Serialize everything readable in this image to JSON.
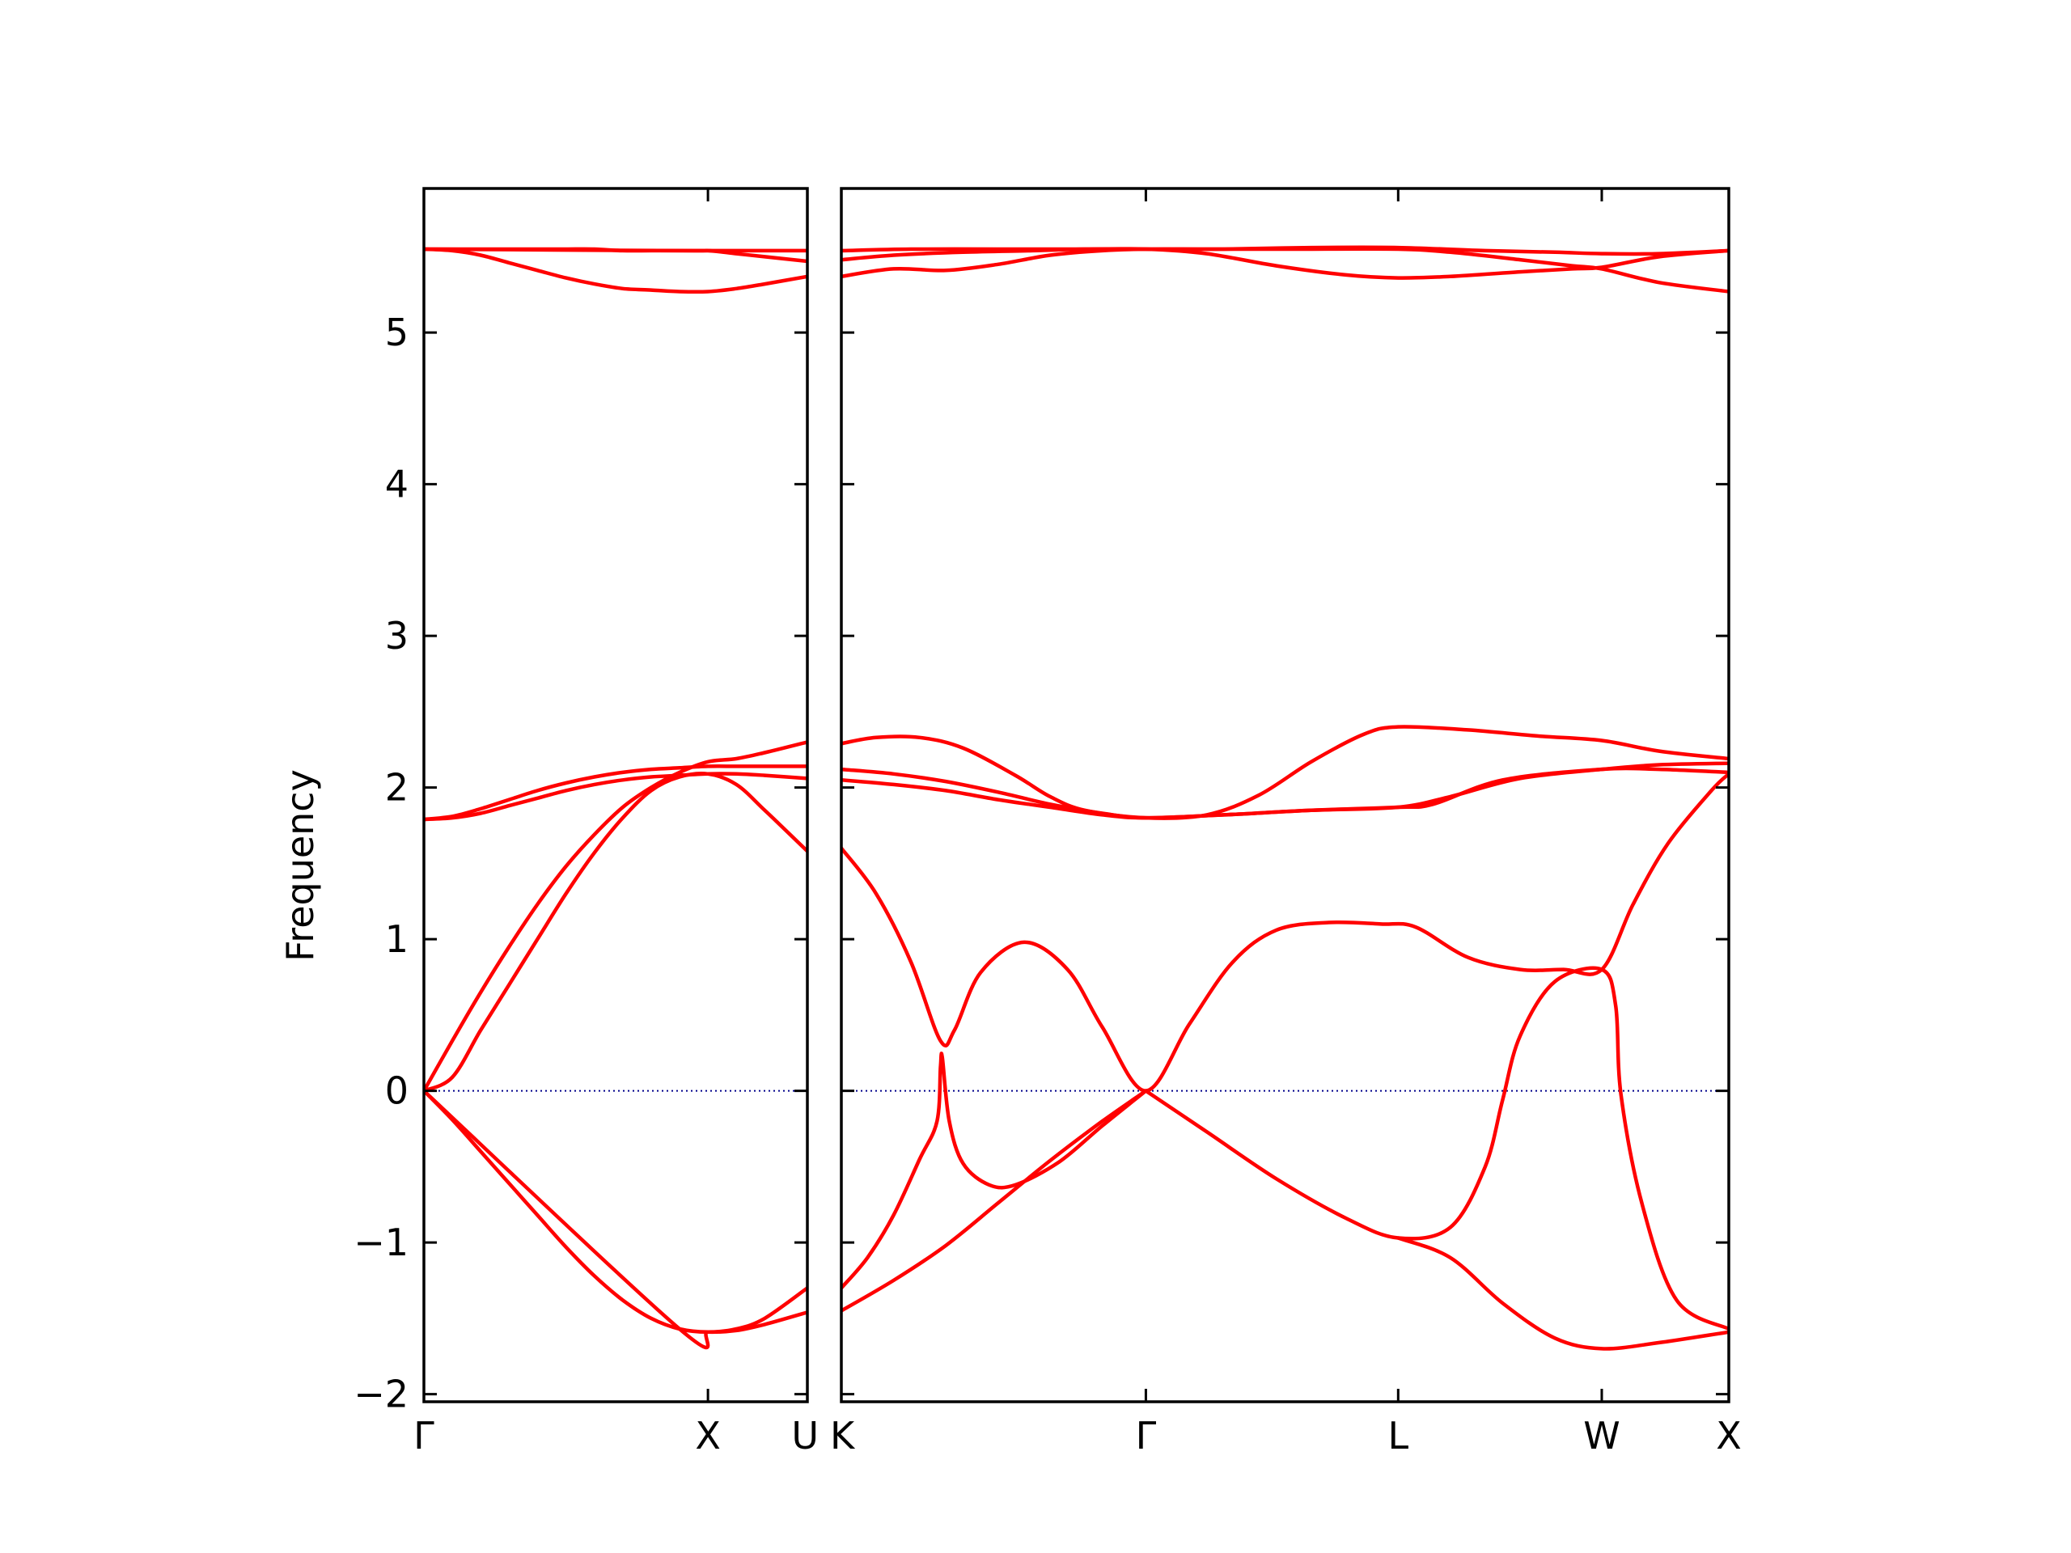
{
  "chart_data": {
    "type": "line",
    "ylabel": "Frequency",
    "xlabel": "",
    "ylim": [
      -2.05,
      5.95
    ],
    "yticks": [
      -2,
      -1,
      0,
      1,
      2,
      3,
      4,
      5
    ],
    "ytick_labels": [
      "−2",
      "−1",
      "0",
      "1",
      "2",
      "3",
      "4",
      "5"
    ],
    "colors": {
      "bands": "#ff0000",
      "zero_line": "#00008b",
      "frame": "#000000"
    },
    "zero_line": {
      "y": 0,
      "style": "dotted"
    },
    "panels": [
      {
        "path": [
          "Γ",
          "X",
          "U"
        ],
        "xrange": [
          0,
          1.35
        ],
        "xticks": [
          {
            "x": 0,
            "label": "Γ"
          },
          {
            "x": 1.0,
            "label": "X"
          },
          {
            "x": 1.35,
            "label": "U"
          }
        ],
        "series": [
          {
            "x": [
              0,
              0.1,
              0.2,
              0.3,
              0.4,
              0.5,
              0.6,
              0.7,
              0.8,
              0.9,
              1.0,
              1.1,
              1.2,
              1.35
            ],
            "y": [
              5.55,
              5.55,
              5.55,
              5.55,
              5.55,
              5.55,
              5.55,
              5.54,
              5.54,
              5.54,
              5.54,
              5.54,
              5.54,
              5.54
            ]
          },
          {
            "x": [
              0,
              0.1,
              0.2,
              0.3,
              0.4,
              0.5,
              0.6,
              0.7,
              0.8,
              0.9,
              1.0,
              1.1,
              1.2,
              1.35
            ],
            "y": [
              5.55,
              5.54,
              5.51,
              5.46,
              5.41,
              5.36,
              5.32,
              5.29,
              5.28,
              5.27,
              5.27,
              5.29,
              5.32,
              5.37
            ]
          },
          {
            "x": [
              0,
              0.9,
              1.0,
              1.1,
              1.2,
              1.35
            ],
            "y": [
              5.55,
              5.54,
              5.54,
              5.52,
              5.5,
              5.47
            ]
          },
          {
            "x": [
              0,
              0.1,
              0.2,
              0.3,
              0.4,
              0.5,
              0.6,
              0.7,
              0.8,
              0.9,
              1.0,
              1.1,
              1.2,
              1.35
            ],
            "y": [
              1.79,
              1.81,
              1.86,
              1.92,
              1.98,
              2.03,
              2.07,
              2.1,
              2.12,
              2.13,
              2.14,
              2.14,
              2.14,
              2.14
            ]
          },
          {
            "x": [
              0,
              0.1,
              0.2,
              0.3,
              0.4,
              0.5,
              0.6,
              0.7,
              0.8,
              0.9,
              1.0,
              1.1,
              1.2,
              1.35
            ],
            "y": [
              1.79,
              1.8,
              1.83,
              1.88,
              1.93,
              1.98,
              2.02,
              2.05,
              2.07,
              2.08,
              2.09,
              2.09,
              2.08,
              2.06
            ]
          },
          {
            "x": [
              0,
              0.1,
              0.2,
              0.3,
              0.4,
              0.5,
              0.6,
              0.7,
              0.8,
              0.9,
              1.0,
              1.1,
              1.2,
              1.35
            ],
            "y": [
              0,
              0.33,
              0.65,
              0.95,
              1.23,
              1.48,
              1.69,
              1.87,
              2.0,
              2.1,
              2.17,
              2.19,
              2.23,
              2.3
            ]
          },
          {
            "x": [
              0,
              0.1,
              0.2,
              0.3,
              0.4,
              0.5,
              0.6,
              0.7,
              0.8,
              0.9,
              1.0,
              1.1,
              1.2,
              1.35
            ],
            "y": [
              0,
              0.09,
              0.4,
              0.7,
              1.0,
              1.3,
              1.57,
              1.8,
              1.98,
              2.07,
              2.09,
              2.02,
              1.85,
              1.58
            ]
          },
          {
            "x": [
              0,
              0.1,
              0.2,
              0.3,
              0.4,
              0.5,
              0.6,
              0.7,
              0.8,
              0.9,
              1.0,
              1.1,
              1.2,
              1.35
            ],
            "y": [
              0,
              -0.19,
              -0.4,
              -0.61,
              -0.82,
              -1.03,
              -1.22,
              -1.38,
              -1.5,
              -1.57,
              -1.59,
              -1.57,
              -1.5,
              -1.3
            ]
          },
          {
            "x": [
              0,
              0.9,
              1.0,
              1.1,
              1.2,
              1.35
            ],
            "y": [
              0,
              -1.57,
              -1.59,
              -1.58,
              -1.54,
              -1.46
            ]
          }
        ]
      },
      {
        "path": [
          "K",
          "Γ",
          "L",
          "W",
          "X"
        ],
        "xrange": [
          0,
          5.1
        ],
        "xticks": [
          {
            "x": 0,
            "label": "K"
          },
          {
            "x": 1.75,
            "label": "Γ"
          },
          {
            "x": 3.2,
            "label": "L"
          },
          {
            "x": 4.37,
            "label": "W"
          },
          {
            "x": 5.1,
            "label": "X"
          }
        ],
        "series": [
          {
            "x": [
              0,
              0.4,
              0.9,
              1.3,
              1.75,
              2.2,
              2.7,
              3.2,
              3.7,
              4.1,
              4.37,
              4.7,
              5.1
            ],
            "y": [
              5.54,
              5.55,
              5.55,
              5.55,
              5.55,
              5.55,
              5.56,
              5.56,
              5.54,
              5.53,
              5.52,
              5.52,
              5.54
            ]
          },
          {
            "x": [
              0,
              0.3,
              0.7,
              1.1,
              1.4,
              1.75,
              2.1,
              2.5,
              2.9,
              3.2,
              3.5,
              3.9,
              4.2,
              4.37,
              4.7,
              5.1
            ],
            "y": [
              5.48,
              5.51,
              5.53,
              5.54,
              5.55,
              5.55,
              5.52,
              5.44,
              5.38,
              5.36,
              5.37,
              5.4,
              5.42,
              5.43,
              5.5,
              5.54
            ]
          },
          {
            "x": [
              0,
              0.3,
              0.6,
              0.9,
              1.2,
              1.5,
              1.75,
              2.1,
              2.6,
              3.2,
              3.5,
              3.9,
              4.2,
              4.37,
              4.7,
              5.1
            ],
            "y": [
              5.37,
              5.42,
              5.41,
              5.45,
              5.51,
              5.54,
              5.55,
              5.55,
              5.55,
              5.55,
              5.53,
              5.48,
              5.44,
              5.42,
              5.33,
              5.27
            ]
          },
          {
            "x": [
              0,
              0.2,
              0.45,
              0.7,
              1.0,
              1.2,
              1.4,
              1.75,
              2.1,
              2.4,
              2.7,
              3.0,
              3.2,
              3.6,
              4.0,
              4.37,
              4.7,
              5.1
            ],
            "y": [
              2.29,
              2.33,
              2.33,
              2.26,
              2.08,
              1.94,
              1.85,
              1.8,
              1.82,
              1.95,
              2.17,
              2.35,
              2.4,
              2.38,
              2.34,
              2.31,
              2.24,
              2.19
            ]
          },
          {
            "x": [
              0,
              0.3,
              0.6,
              0.9,
              1.2,
              1.5,
              1.75,
              2.2,
              2.7,
              3.2,
              3.5,
              3.9,
              4.37,
              4.7,
              5.1
            ],
            "y": [
              2.12,
              2.09,
              2.04,
              1.97,
              1.89,
              1.83,
              1.8,
              1.82,
              1.85,
              1.87,
              1.94,
              2.06,
              2.12,
              2.15,
              2.16
            ]
          },
          {
            "x": [
              0,
              0.3,
              0.6,
              0.9,
              1.2,
              1.5,
              1.75,
              2.2,
              2.7,
              3.2,
              3.4,
              3.8,
              4.37,
              4.7,
              5.1
            ],
            "y": [
              2.05,
              2.02,
              1.98,
              1.92,
              1.87,
              1.82,
              1.8,
              1.82,
              1.85,
              1.87,
              1.89,
              2.05,
              2.12,
              2.12,
              2.1
            ]
          },
          {
            "x": [
              0,
              0.2,
              0.4,
              0.57,
              0.65,
              0.8,
              1.05,
              1.3,
              1.5,
              1.75,
              2.0,
              2.25,
              2.5,
              2.8,
              3.1,
              3.3,
              3.6,
              3.9,
              4.15,
              4.37,
              4.55,
              4.75,
              5.0,
              5.1
            ],
            "y": [
              1.6,
              1.3,
              0.85,
              0.33,
              0.4,
              0.78,
              0.98,
              0.8,
              0.42,
              0,
              0.44,
              0.85,
              1.06,
              1.11,
              1.1,
              1.08,
              0.88,
              0.8,
              0.8,
              0.8,
              1.23,
              1.63,
              1.98,
              2.09
            ]
          },
          {
            "x": [
              0,
              0.15,
              0.3,
              0.45,
              0.55,
              0.57,
              0.58,
              0.62,
              0.7,
              0.85,
              1.0,
              1.25,
              1.5,
              1.75
            ],
            "y": [
              -1.3,
              -1.1,
              -0.82,
              -0.45,
              -0.2,
              0.16,
              0.22,
              -0.2,
              -0.48,
              -0.62,
              -0.62,
              -0.47,
              -0.23,
              0
            ]
          },
          {
            "x": [
              0,
              0.3,
              0.6,
              0.9,
              1.2,
              1.5,
              1.75
            ],
            "y": [
              -1.45,
              -1.25,
              -1.02,
              -0.74,
              -0.46,
              -0.2,
              0
            ]
          },
          {
            "x": [
              1.75,
              2.1,
              2.5,
              2.9,
              3.2,
              3.5,
              3.7,
              3.8,
              3.9,
              4.1,
              4.37,
              4.45,
              4.48,
              4.6,
              4.8,
              5.1
            ],
            "y": [
              0,
              -0.27,
              -0.58,
              -0.84,
              -0.97,
              -0.9,
              -0.5,
              -0.06,
              0.36,
              0.72,
              0.8,
              0.56,
              -0.02,
              -0.74,
              -1.38,
              -1.57
            ]
          },
          {
            "x": [
              3.2,
              3.5,
              3.8,
              4.1,
              4.37,
              4.7,
              5.1
            ],
            "y": [
              -0.97,
              -1.1,
              -1.4,
              -1.63,
              -1.7,
              -1.66,
              -1.59
            ]
          }
        ]
      }
    ]
  }
}
